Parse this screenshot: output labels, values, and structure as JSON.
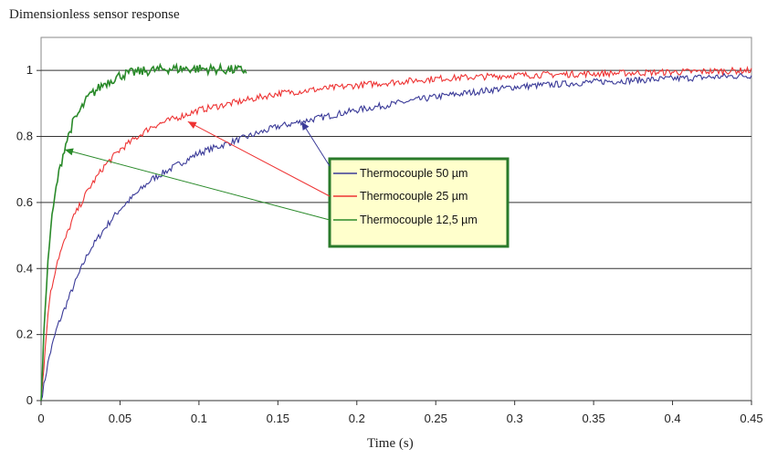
{
  "chart_data": {
    "type": "line",
    "title": "",
    "ylabel": "Dimensionless sensor response",
    "xlabel": "Time (s)",
    "xlim": [
      0,
      0.45
    ],
    "ylim": [
      0,
      1.1
    ],
    "x_ticks": [
      "0",
      "0.05",
      "0.1",
      "0.15",
      "0.2",
      "0.25",
      "0.3",
      "0.35",
      "0.4",
      "0.45"
    ],
    "y_ticks": [
      "0",
      "0.2",
      "0.4",
      "0.6",
      "0.8",
      "1"
    ],
    "grid": "horizontal",
    "legend_placement": "center-right",
    "series": [
      {
        "name": "Thermocouple 50 µm",
        "color": "#3a3a98",
        "x": [
          0,
          0.005,
          0.01,
          0.02,
          0.03,
          0.04,
          0.05,
          0.07,
          0.1,
          0.15,
          0.2,
          0.25,
          0.3,
          0.35,
          0.4,
          0.45
        ],
        "y": [
          0,
          0.13,
          0.22,
          0.34,
          0.45,
          0.52,
          0.58,
          0.67,
          0.75,
          0.83,
          0.88,
          0.92,
          0.95,
          0.965,
          0.975,
          0.985
        ]
      },
      {
        "name": "Thermocouple 25 µm",
        "color": "#ee3333",
        "x": [
          0,
          0.005,
          0.01,
          0.02,
          0.03,
          0.04,
          0.05,
          0.07,
          0.1,
          0.15,
          0.2,
          0.25,
          0.3,
          0.35,
          0.4,
          0.45
        ],
        "y": [
          0,
          0.3,
          0.42,
          0.55,
          0.64,
          0.71,
          0.76,
          0.83,
          0.88,
          0.93,
          0.955,
          0.975,
          0.985,
          0.99,
          0.995,
          1.0
        ]
      },
      {
        "name": "Thermocouple 12,5 µm",
        "color": "#2a8a2a",
        "x": [
          0,
          0.003,
          0.006,
          0.01,
          0.015,
          0.02,
          0.03,
          0.04,
          0.05,
          0.06,
          0.07,
          0.08,
          0.1,
          0.13
        ],
        "y": [
          0,
          0.33,
          0.52,
          0.66,
          0.77,
          0.84,
          0.92,
          0.96,
          0.985,
          0.995,
          1.0,
          1.005,
          1.005,
          1.0
        ]
      }
    ]
  }
}
